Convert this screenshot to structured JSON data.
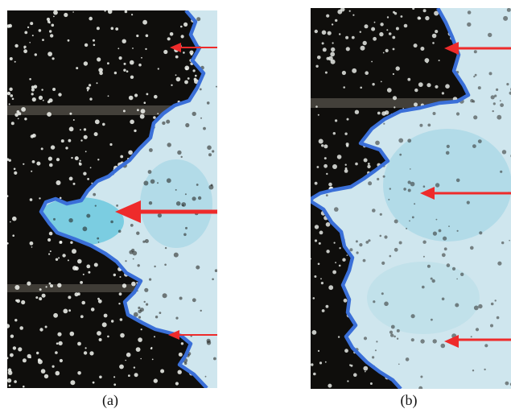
{
  "figure": {
    "captions": {
      "a": "(a)",
      "b": "(b)"
    }
  },
  "colors": {
    "dark_region": "#0f0e0c",
    "light_region": "#cfe6ee",
    "cyan_tint": "#5fc4dc",
    "boundary_line": "#3a6fd8",
    "arrow": "#ee2b2b",
    "pore_white": "#f4f7f2",
    "pore_dark": "#1c1a16"
  }
}
